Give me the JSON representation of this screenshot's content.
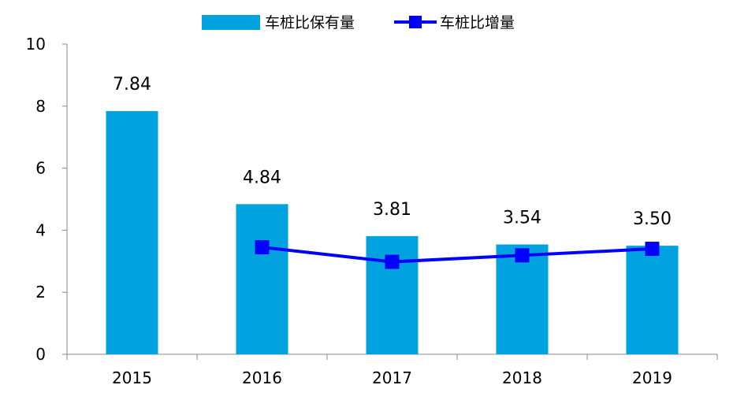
{
  "chart_data": {
    "type": "bar",
    "categories": [
      "2015",
      "2016",
      "2017",
      "2018",
      "2019"
    ],
    "series": [
      {
        "name": "车桩比保有量",
        "type": "bar",
        "color": "#00A3E0",
        "values": [
          7.84,
          4.84,
          3.81,
          3.54,
          3.5
        ],
        "data_labels": [
          "7.84",
          "4.84",
          "3.81",
          "3.54",
          "3.50"
        ]
      },
      {
        "name": "车桩比增量",
        "type": "line",
        "marker": "square",
        "color": "#0000FF",
        "values": [
          null,
          3.45,
          2.98,
          3.19,
          3.4
        ]
      }
    ],
    "y_ticks": [
      "0",
      "2",
      "4",
      "6",
      "8",
      "10"
    ],
    "ylim": [
      0,
      10
    ],
    "legend_position": "top-center",
    "grid": false
  }
}
